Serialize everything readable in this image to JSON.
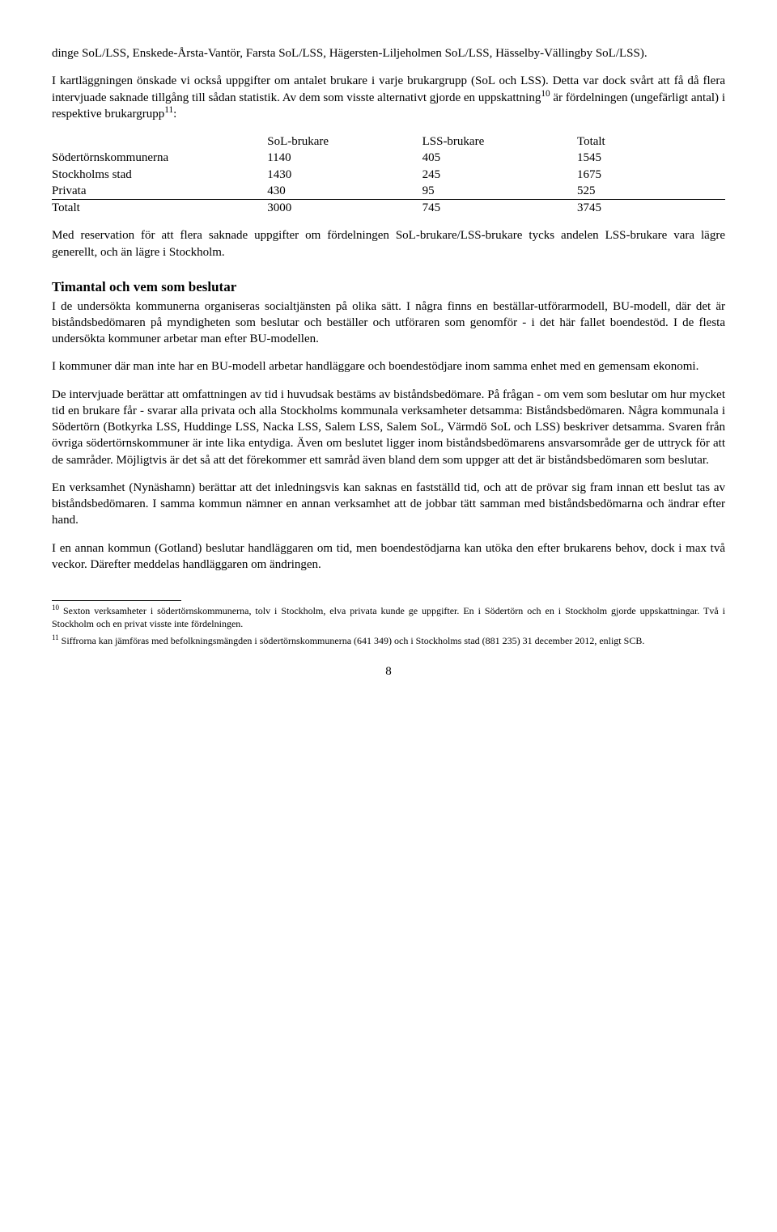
{
  "p1": "dinge SoL/LSS, Enskede-Årsta-Vantör, Farsta SoL/LSS, Hägersten-Liljeholmen SoL/LSS, Hässelby-Vällingby SoL/LSS).",
  "p2a": "I kartläggningen önskade vi också uppgifter om antalet brukare i varje brukargrupp (SoL och LSS). Detta var dock svårt att få då flera intervjuade saknade tillgång till sådan statistik. Av dem som visste alternativt gjorde en uppskattning",
  "p2b": " är fördelningen (ungefärligt antal) i respektive brukargrupp",
  "p2c": ":",
  "fn10sup": "10",
  "fn11sup": "11",
  "table": {
    "columns": [
      "",
      "SoL-brukare",
      "LSS-brukare",
      "Totalt"
    ],
    "rows": [
      [
        "Södertörnskommunerna",
        "1140",
        "405",
        "1545"
      ],
      [
        "Stockholms stad",
        "1430",
        "245",
        "1675"
      ],
      [
        "Privata",
        "  430",
        "  95",
        "  525"
      ],
      [
        "Totalt",
        "3000",
        "745",
        "3745"
      ]
    ],
    "col_widths": [
      "32%",
      "23%",
      "23%",
      "22%"
    ]
  },
  "p3": "Med reservation för att flera saknade uppgifter om fördelningen SoL-brukare/LSS-brukare tycks andelen LSS-brukare vara lägre generellt, och än lägre i Stockholm.",
  "heading": "Timantal och vem som beslutar",
  "p4": "I de undersökta kommunerna organiseras socialtjänsten på olika sätt. I några finns en beställar-utförarmodell, BU-modell, där det är biståndsbedömaren på myndigheten som beslutar och beställer och utföraren som genomför - i det här fallet boendestöd. I de flesta undersökta kommuner arbetar man efter BU-modellen.",
  "p5": "I kommuner där man inte har en BU-modell arbetar handläggare och boendestödjare inom samma enhet med en gemensam ekonomi.",
  "p6": "De intervjuade berättar att omfattningen av tid i huvudsak bestäms av biståndsbedömare. På frågan - om vem som beslutar om hur mycket tid en brukare får - svarar alla privata och alla Stockholms kommunala verksamheter detsamma: Biståndsbedömaren. Några kommunala i Södertörn (Botkyrka LSS, Huddinge LSS, Nacka LSS, Salem LSS, Salem SoL, Värmdö SoL och LSS) beskriver detsamma. Svaren från övriga södertörnskommuner är inte lika entydiga. Även om beslutet ligger inom biståndsbedömarens ansvarsområde ger de uttryck för att de samråder. Möjligtvis är det så att det förekommer ett samråd även bland dem som uppger att det är biståndsbedömaren som beslutar.",
  "p7": "En verksamhet (Nynäshamn) berättar att det inledningsvis kan saknas en fastställd tid, och att de prövar sig fram innan ett beslut tas av biståndsbedömaren. I samma kommun nämner en annan verksamhet att de jobbar tätt samman med biståndsbedömarna och ändrar efter hand.",
  "p8": "I en annan kommun (Gotland) beslutar handläggaren om tid, men boendestödjarna kan utöka den efter brukarens behov, dock i max två veckor. Därefter meddelas handläggaren om ändringen.",
  "fn10": " Sexton verksamheter i södertörnskommunerna, tolv i Stockholm, elva privata kunde ge uppgifter. En i Södertörn och en i Stockholm gjorde uppskattningar. Två i Stockholm och en privat visste inte fördelningen.",
  "fn11": " Siffrorna kan jämföras med befolkningsmängden i södertörnskommunerna (641 349) och i Stockholms stad (881 235) 31 december 2012, enligt SCB.",
  "pagenum": "8"
}
